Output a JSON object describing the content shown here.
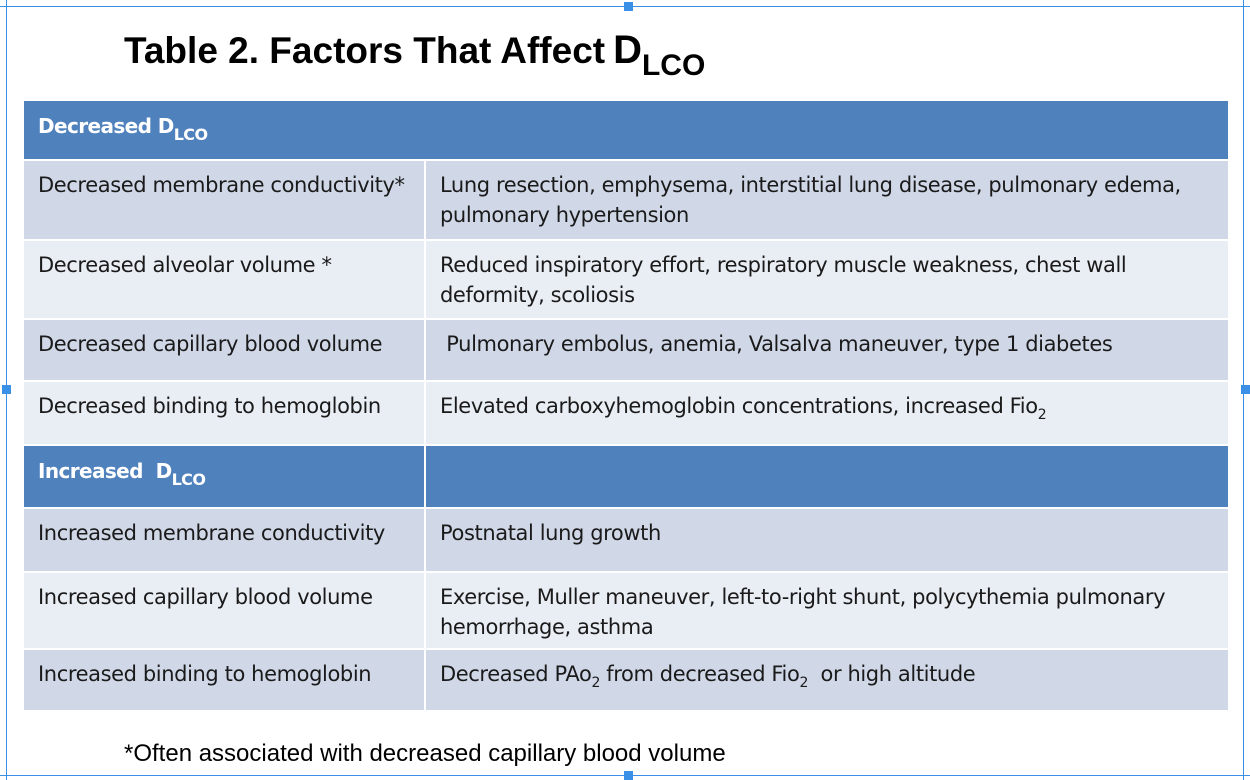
{
  "title": {
    "main": "Table 2. Factors That Affect",
    "symbol": "D",
    "subscript": "LCO"
  },
  "sections": {
    "decreased": {
      "label": "Decreased D",
      "subscript": "LCO",
      "rows": [
        {
          "factor": "Decreased membrane conductivity*",
          "causes": "Lung resection, emphysema, interstitial lung disease, pulmonary edema, pulmonary hypertension"
        },
        {
          "factor": "Decreased alveolar volume *",
          "causes": "Reduced  inspiratory effort, respiratory muscle weakness, chest wall deformity, scoliosis"
        },
        {
          "factor": "Decreased capillary blood volume",
          "causes": " Pulmonary embolus, anemia, Valsalva maneuver, type 1 diabetes"
        },
        {
          "factor": "Decreased binding to hemoglobin",
          "causes_pre": "Elevated carboxyhemoglobin concentrations, increased Fio",
          "causes_sub": "2"
        }
      ]
    },
    "increased": {
      "label": "Increased  D",
      "subscript": "LCO",
      "rows": [
        {
          "factor": "Increased membrane conductivity",
          "causes": "Postnatal lung growth"
        },
        {
          "factor": "Increased capillary blood volume",
          "causes": "Exercise, Muller maneuver, left-to-right shunt, polycythemia pulmonary hemorrhage, asthma"
        },
        {
          "factor": "Increased binding to hemoglobin",
          "causes_a": "Decreased PAo",
          "sub_a": "2",
          "causes_b": " from decreased Fio",
          "sub_b": "2",
          "causes_c": "  or high altitude"
        }
      ]
    }
  },
  "footnote": "*Often associated with decreased capillary blood volume",
  "colors": {
    "header": "#4f81bd",
    "row_dark": "#d0d8e8",
    "row_light": "#e9edf4",
    "selection": "#3a8fe6"
  }
}
